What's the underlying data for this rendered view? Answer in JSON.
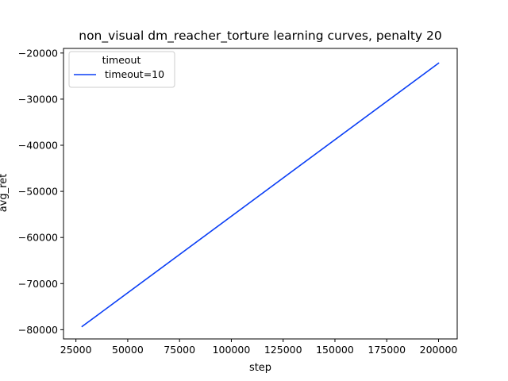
{
  "chart_data": {
    "type": "line",
    "title": "non_visual dm_reacher_torture learning curves, penalty 20",
    "xlabel": "step",
    "ylabel": "avg_ret",
    "xlim": [
      19000,
      209000
    ],
    "ylim": [
      -82000,
      -19000
    ],
    "xticks": [
      25000,
      50000,
      75000,
      100000,
      125000,
      150000,
      175000,
      200000
    ],
    "xtick_labels": [
      "25000",
      "50000",
      "75000",
      "100000",
      "125000",
      "150000",
      "175000",
      "200000"
    ],
    "yticks": [
      -80000,
      -70000,
      -60000,
      -50000,
      -40000,
      -30000,
      -20000
    ],
    "ytick_labels": [
      "−80000",
      "−70000",
      "−60000",
      "−50000",
      "−40000",
      "−30000",
      "−20000"
    ],
    "grid": false,
    "legend": {
      "title": "timeout",
      "placement": "top-left"
    },
    "series": [
      {
        "name": "timeout=10",
        "color": "#0a3ef5",
        "x": [
          28000,
          200000
        ],
        "y": [
          -79300,
          -22200
        ]
      }
    ]
  }
}
